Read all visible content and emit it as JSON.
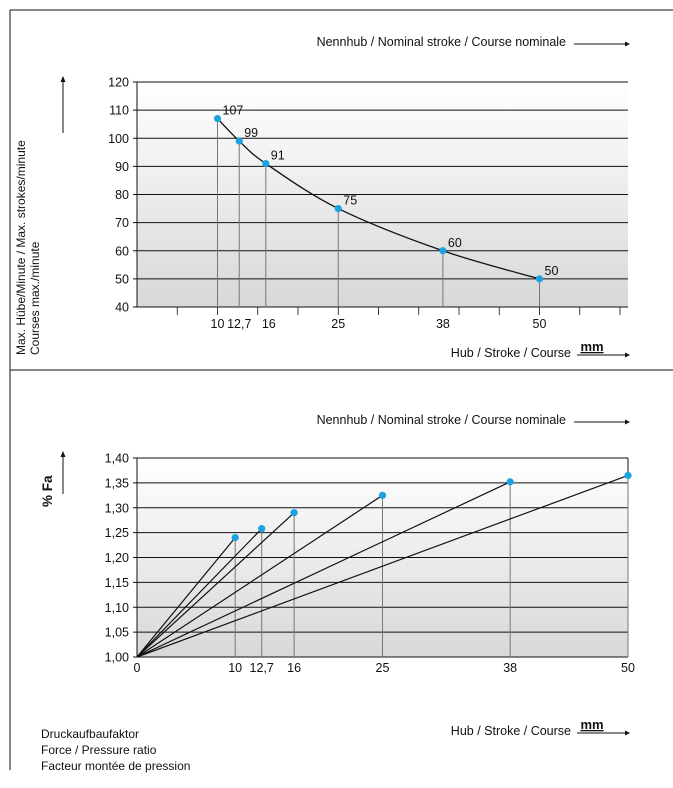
{
  "chart_data": [
    {
      "type": "line",
      "title": "Nennhub / Nominal stroke / Course nominale",
      "ylabel": "Max. Hübe/Minute / Max. strokes/minute",
      "ylabel2": "Courses max./minute",
      "xlabel": "Hub / Stroke / Course",
      "xunit": "mm",
      "ylim": [
        40,
        120
      ],
      "yticks": [
        "40",
        "50",
        "60",
        "70",
        "80",
        "90",
        "100",
        "110",
        "120"
      ],
      "xticks": [
        "10",
        "12,7",
        "16",
        "25",
        "38",
        "50"
      ],
      "grid": true,
      "series": [
        {
          "x": [
            10,
            12.7,
            16,
            25,
            38,
            50
          ],
          "values": [
            107,
            99,
            91,
            75,
            60,
            50
          ],
          "labels": [
            "107",
            "99",
            "91",
            "75",
            "60",
            "50"
          ]
        }
      ]
    },
    {
      "type": "line",
      "title": "Nennhub / Nominal stroke / Course nominale",
      "ylabel": "% Fa",
      "xlabel": "Hub / Stroke / Course",
      "xunit": "mm",
      "ylim": [
        1.0,
        1.4
      ],
      "yticks": [
        "1,00",
        "1,05",
        "1,10",
        "1,15",
        "1,20",
        "1,25",
        "1,30",
        "1,35",
        "1,40"
      ],
      "xticks": [
        "0",
        "10",
        "12,7",
        "16",
        "25",
        "38",
        "50"
      ],
      "grid": true,
      "series": [
        {
          "x": [
            0,
            10
          ],
          "values": [
            1.0,
            1.24
          ]
        },
        {
          "x": [
            0,
            12.7
          ],
          "values": [
            1.0,
            1.258
          ]
        },
        {
          "x": [
            0,
            16
          ],
          "values": [
            1.0,
            1.29
          ]
        },
        {
          "x": [
            0,
            25
          ],
          "values": [
            1.0,
            1.325
          ]
        },
        {
          "x": [
            0,
            38
          ],
          "values": [
            1.0,
            1.352
          ]
        },
        {
          "x": [
            0,
            50
          ],
          "values": [
            1.0,
            1.365
          ]
        }
      ]
    }
  ],
  "legend": {
    "lines": [
      "Druckaufbaufaktor",
      "Force / Pressure ratio",
      "Facteur montée de pression"
    ]
  },
  "colors": {
    "marker": "#1aa3e0",
    "grid": "#111111",
    "line": "#111111"
  }
}
